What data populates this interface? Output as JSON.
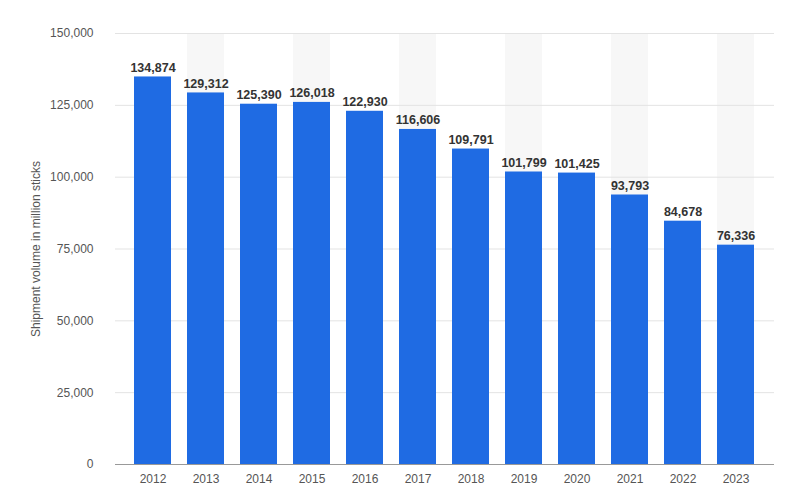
{
  "chart_data": {
    "type": "bar",
    "categories": [
      "2012",
      "2013",
      "2014",
      "2015",
      "2016",
      "2017",
      "2018",
      "2019",
      "2020",
      "2021",
      "2022",
      "2023"
    ],
    "values": [
      134874,
      129312,
      125390,
      126018,
      122930,
      116606,
      109791,
      101799,
      101425,
      93793,
      84678,
      76336
    ],
    "value_labels": [
      "134,874",
      "129,312",
      "125,390",
      "126,018",
      "122,930",
      "116,606",
      "109,791",
      "101,799",
      "101,425",
      "93,793",
      "84,678",
      "76,336"
    ],
    "data_labels": true,
    "color": "#1f6be3",
    "y_label": "Shipment volume in million sticks",
    "ylim": [
      0,
      150000
    ],
    "yticks": [
      0,
      {
        "value": 25000,
        "label": "25,000"
      },
      {
        "value": 50000,
        "label": "50,000"
      },
      {
        "value": 75000,
        "label": "75,000"
      },
      {
        "value": 100000,
        "label": "100,000"
      },
      {
        "value": 125000,
        "label": "125,000"
      },
      {
        "value": 150000,
        "label": "150,000"
      }
    ],
    "grid": true
  }
}
